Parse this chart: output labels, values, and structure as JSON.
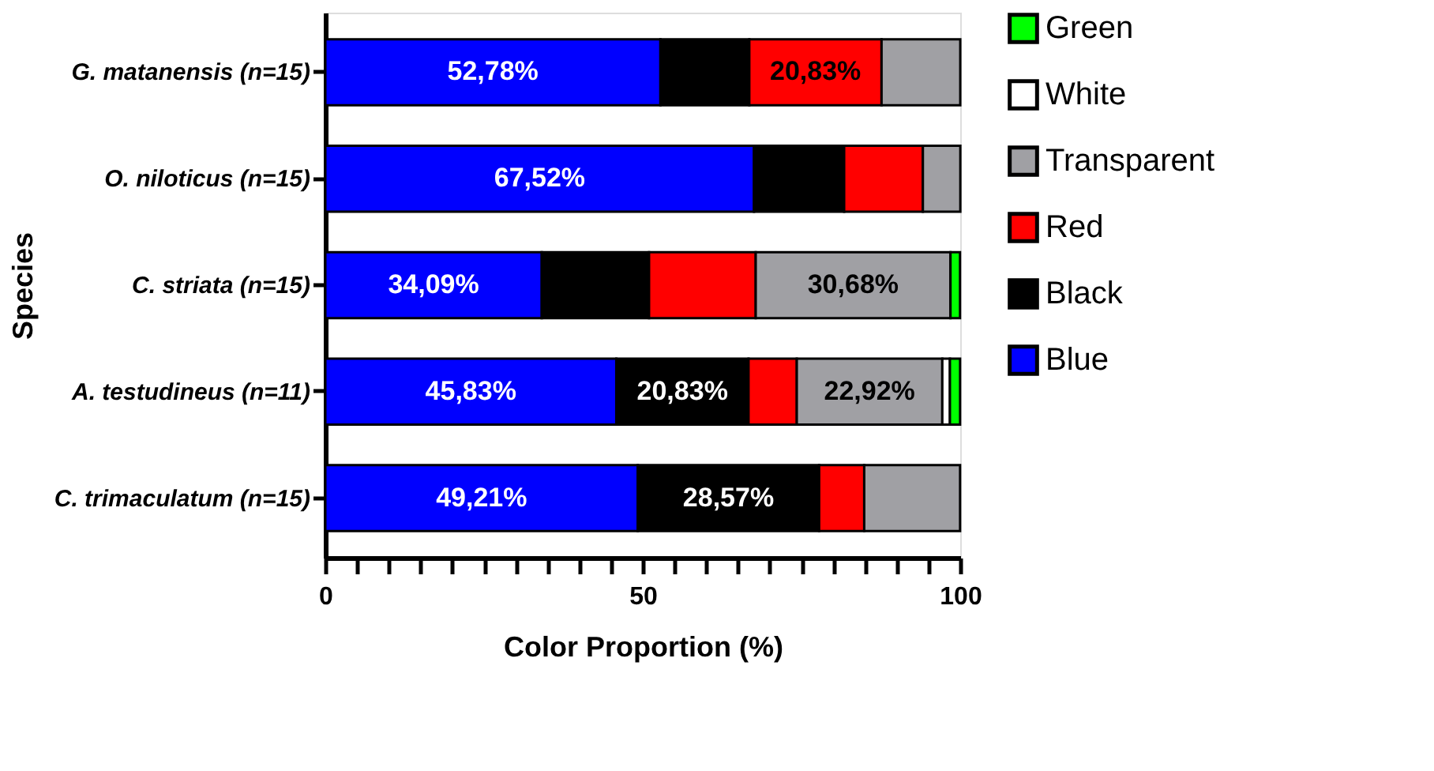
{
  "chart_data": {
    "type": "bar",
    "orientation": "horizontal",
    "stacked": true,
    "categories": [
      "G. matanensis (n=15)",
      "O. niloticus (n=15)",
      "C. striata (n=15)",
      "A. testudineus (n=11)",
      "C. trimaculatum (n=15)"
    ],
    "series": [
      {
        "name": "Blue",
        "color": "#0000ff",
        "values": [
          52.78,
          67.52,
          34.09,
          45.83,
          49.21
        ],
        "value_labels": [
          "52,78%",
          "67,52%",
          "34,09%",
          "45,83%",
          "49,21%"
        ]
      },
      {
        "name": "Black",
        "color": "#000000",
        "values": [
          14.0,
          14.2,
          16.9,
          20.83,
          28.57
        ],
        "value_labels": [
          null,
          null,
          null,
          "20,83%",
          "28,57%"
        ]
      },
      {
        "name": "Red",
        "color": "#ff0000",
        "values": [
          20.83,
          12.4,
          16.8,
          7.6,
          7.1
        ],
        "value_labels": [
          "20,83%",
          null,
          null,
          null,
          null
        ]
      },
      {
        "name": "Transparent",
        "color": "#a0a0a4",
        "values": [
          12.4,
          5.9,
          30.68,
          22.92,
          15.1
        ],
        "value_labels": [
          null,
          null,
          "30,68%",
          "22,92%",
          null
        ]
      },
      {
        "name": "White",
        "color": "#ffffff",
        "values": [
          null,
          null,
          null,
          1.2,
          null
        ]
      },
      {
        "name": "Green",
        "color": "#00ff00",
        "values": [
          null,
          null,
          1.5,
          1.6,
          null
        ]
      }
    ],
    "xlabel": "Color Proportion (%)",
    "ylabel": "Species",
    "xlim": [
      0,
      100
    ],
    "xticks": [
      0,
      {
        "value": 5,
        "label": null
      },
      {
        "value": 10,
        "label": null
      },
      {
        "value": 15,
        "label": null
      },
      {
        "value": 20,
        "label": null
      },
      {
        "value": 25,
        "label": null
      },
      {
        "value": 30,
        "label": null
      },
      {
        "value": 35,
        "label": null
      },
      {
        "value": 40,
        "label": null
      },
      {
        "value": 45,
        "label": null
      },
      50,
      {
        "value": 55,
        "label": null
      },
      {
        "value": 60,
        "label": null
      },
      {
        "value": 65,
        "label": null
      },
      {
        "value": 70,
        "label": null
      },
      {
        "value": 75,
        "label": null
      },
      {
        "value": 80,
        "label": null
      },
      {
        "value": 85,
        "label": null
      },
      {
        "value": 90,
        "label": null
      },
      {
        "value": 95,
        "label": null
      },
      100
    ],
    "grid": false,
    "legend": "right"
  }
}
